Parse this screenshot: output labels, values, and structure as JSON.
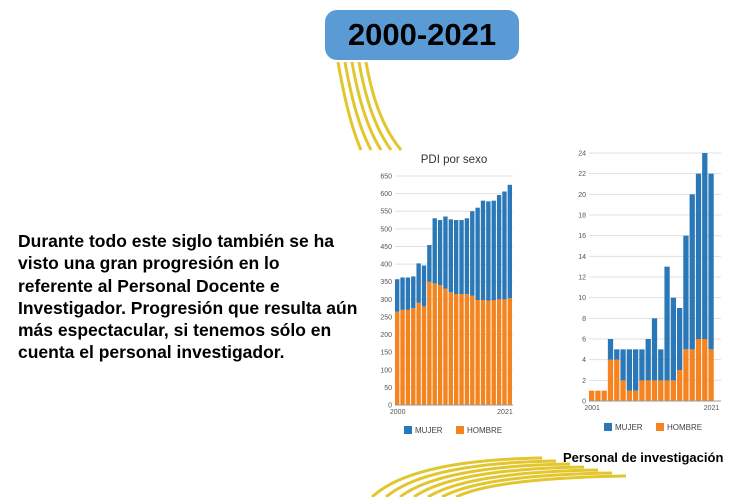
{
  "header": {
    "title": "2000-2021"
  },
  "paragraph": {
    "text": "Durante todo este siglo también se ha visto una gran progresión en lo referente al Personal Docente e Investigador. Progresión que resulta aún más espectacular, si tenemos sólo en cuenta el personal investigador."
  },
  "footnote": {
    "text": "Personal de  investigación"
  },
  "colors": {
    "mujer": "#2b78b8",
    "hombre": "#f5831f",
    "badge": "#5b9bd5",
    "decor": "#e2c62e"
  },
  "chart_data": [
    {
      "type": "bar",
      "stacked": true,
      "title": "PDI por sexo",
      "xlabel": "",
      "ylabel": "",
      "x": [
        2000,
        2001,
        2002,
        2003,
        2004,
        2005,
        2006,
        2007,
        2008,
        2009,
        2010,
        2011,
        2012,
        2013,
        2014,
        2015,
        2016,
        2017,
        2018,
        2019,
        2020,
        2021
      ],
      "x_tick_labels": [
        "2000",
        "2021"
      ],
      "ylim": [
        0,
        650
      ],
      "y_ticks": [
        0,
        50,
        100,
        150,
        200,
        250,
        300,
        350,
        400,
        450,
        500,
        550,
        600,
        650
      ],
      "series": [
        {
          "name": "HOMBRE",
          "values": [
            265,
            270,
            270,
            275,
            290,
            280,
            350,
            345,
            340,
            330,
            320,
            315,
            315,
            315,
            310,
            298,
            298,
            296,
            298,
            300,
            300,
            303
          ]
        },
        {
          "name": "MUJER",
          "values": [
            92,
            92,
            92,
            90,
            112,
            116,
            104,
            185,
            185,
            205,
            207,
            210,
            210,
            215,
            240,
            262,
            282,
            282,
            282,
            296,
            306,
            322
          ]
        }
      ],
      "legend": "bottom"
    },
    {
      "type": "bar",
      "stacked": true,
      "title": "",
      "xlabel": "",
      "ylabel": "",
      "x": [
        2001,
        2002,
        2003,
        2004,
        2005,
        2006,
        2007,
        2008,
        2009,
        2010,
        2011,
        2012,
        2013,
        2014,
        2015,
        2016,
        2017,
        2018,
        2019,
        2020,
        2021
      ],
      "x_tick_labels": [
        "2001",
        "2021"
      ],
      "ylim": [
        0,
        24
      ],
      "y_ticks": [
        0,
        2,
        4,
        6,
        8,
        10,
        12,
        14,
        16,
        18,
        20,
        22,
        24
      ],
      "series": [
        {
          "name": "HOMBRE",
          "values": [
            1,
            1,
            1,
            4,
            4,
            2,
            1,
            1,
            2,
            2,
            2,
            2,
            2,
            2,
            3,
            5,
            5,
            6,
            6,
            5,
            0
          ]
        },
        {
          "name": "MUJER",
          "values": [
            0,
            0,
            0,
            2,
            1,
            3,
            4,
            4,
            3,
            4,
            6,
            3,
            11,
            8,
            6,
            11,
            15,
            16,
            18,
            17,
            0
          ]
        }
      ],
      "legend": "bottom"
    }
  ]
}
